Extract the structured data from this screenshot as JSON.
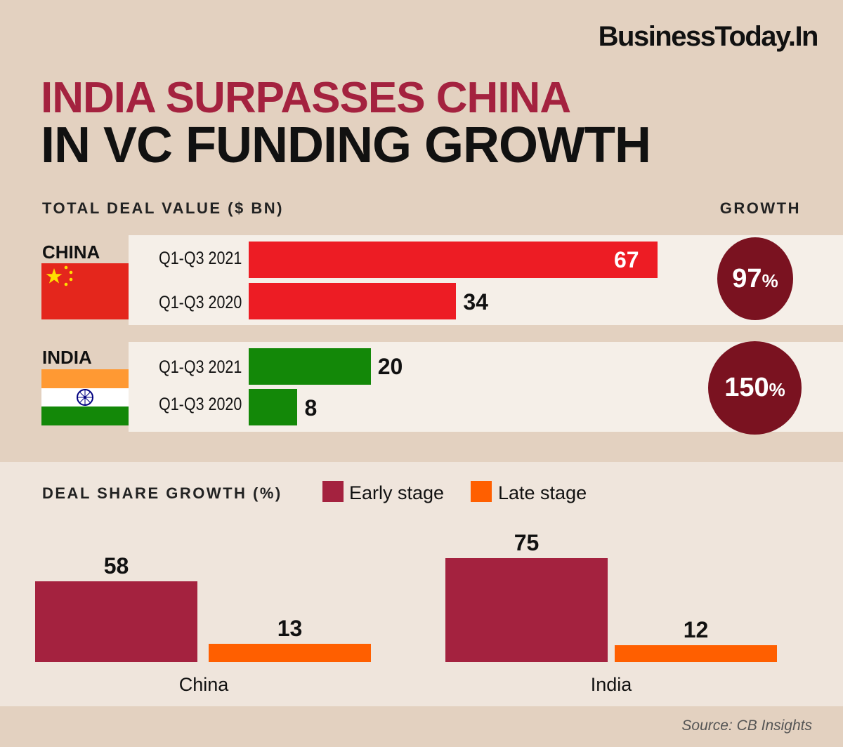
{
  "brand": "BusinessToday.In",
  "title_line1": "INDIA SURPASSES CHINA",
  "title_line2": "IN VC FUNDING GROWTH",
  "source": "Source: CB Insights",
  "colors": {
    "china_bar": "#ed1c24",
    "india_bar": "#138808",
    "early": "#a4223f",
    "late": "#ff5f00",
    "growth_circle": "#7a1220"
  },
  "chart_data": [
    {
      "type": "bar",
      "orientation": "horizontal",
      "title": "TOTAL DEAL VALUE ($ BN)",
      "growth_header": "GROWTH",
      "groups": [
        {
          "name": "CHINA",
          "bars": [
            {
              "label": "Q1-Q3 2021",
              "value": 67
            },
            {
              "label": "Q1-Q3 2020",
              "value": 34
            }
          ],
          "growth": "97",
          "growth_unit": "%"
        },
        {
          "name": "INDIA",
          "bars": [
            {
              "label": "Q1-Q3 2021",
              "value": 20
            },
            {
              "label": "Q1-Q3 2020",
              "value": 8
            }
          ],
          "growth": "150",
          "growth_unit": "%"
        }
      ],
      "xlim": [
        0,
        67
      ]
    },
    {
      "type": "bar",
      "title": "DEAL SHARE GROWTH (%)",
      "categories": [
        "China",
        "India"
      ],
      "series": [
        {
          "name": "Early stage",
          "values": [
            58,
            75
          ]
        },
        {
          "name": "Late stage",
          "values": [
            13,
            12
          ]
        }
      ],
      "legend": "top"
    }
  ]
}
